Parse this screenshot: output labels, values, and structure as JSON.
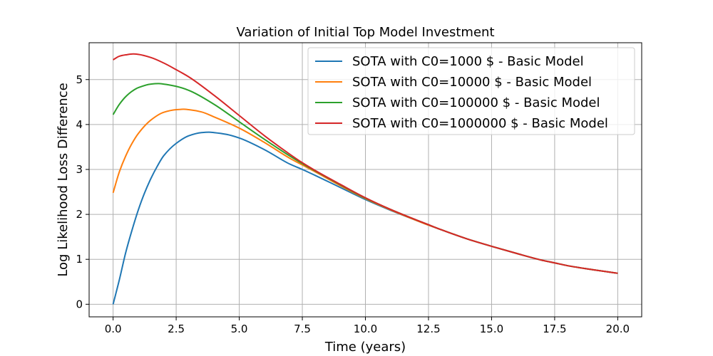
{
  "chart_data": {
    "type": "line",
    "title": "Variation of Initial Top Model Investment",
    "xlabel": "Time (years)",
    "ylabel": "Log Likelihood Loss Difference",
    "xlim": [
      -0.95,
      20.95
    ],
    "ylim": [
      -0.28,
      5.82
    ],
    "xticks": [
      0.0,
      2.5,
      5.0,
      7.5,
      10.0,
      12.5,
      15.0,
      17.5,
      20.0
    ],
    "xtick_labels": [
      "0.0",
      "2.5",
      "5.0",
      "7.5",
      "10.0",
      "12.5",
      "15.0",
      "17.5",
      "20.0"
    ],
    "yticks": [
      0,
      1,
      2,
      3,
      4,
      5
    ],
    "ytick_labels": [
      "0",
      "1",
      "2",
      "3",
      "4",
      "5"
    ],
    "grid": true,
    "legend_position": "top-right",
    "series": [
      {
        "name": "SOTA with C0=1000 $ - Basic Model",
        "color": "#1f77b4",
        "x": [
          0,
          0.25,
          0.5,
          0.75,
          1,
          1.25,
          1.5,
          1.75,
          2,
          2.5,
          3,
          3.5,
          3.8,
          4,
          4.5,
          5,
          6,
          7,
          7.5,
          8,
          9,
          10,
          11,
          12,
          12.5,
          13,
          14,
          15,
          16,
          17,
          17.5,
          18,
          19,
          20
        ],
        "y": [
          0,
          0.55,
          1.15,
          1.65,
          2.1,
          2.48,
          2.8,
          3.07,
          3.3,
          3.58,
          3.75,
          3.82,
          3.83,
          3.82,
          3.78,
          3.7,
          3.44,
          3.12,
          3.0,
          2.87,
          2.6,
          2.33,
          2.09,
          1.87,
          1.76,
          1.66,
          1.46,
          1.29,
          1.13,
          0.98,
          0.92,
          0.86,
          0.77,
          0.69
        ]
      },
      {
        "name": "SOTA with C0=10000 $ - Basic Model",
        "color": "#ff7f0e",
        "x": [
          0,
          0.25,
          0.5,
          0.75,
          1,
          1.5,
          2,
          2.5,
          2.8,
          3,
          3.5,
          4,
          5,
          6,
          7,
          7.5,
          8,
          9,
          10,
          11,
          12,
          12.5,
          13,
          14,
          15,
          16,
          17,
          17.5,
          18,
          19,
          20
        ],
        "y": [
          2.48,
          2.95,
          3.3,
          3.58,
          3.8,
          4.1,
          4.27,
          4.33,
          4.34,
          4.33,
          4.28,
          4.17,
          3.92,
          3.6,
          3.25,
          3.1,
          2.95,
          2.64,
          2.35,
          2.1,
          1.87,
          1.76,
          1.66,
          1.46,
          1.29,
          1.13,
          0.98,
          0.92,
          0.86,
          0.77,
          0.69
        ]
      },
      {
        "name": "SOTA with C0=100000 $ - Basic Model",
        "color": "#2ca02c",
        "x": [
          0,
          0.25,
          0.5,
          0.75,
          1,
          1.5,
          1.8,
          2,
          2.5,
          3,
          4,
          5,
          6,
          7,
          7.5,
          8,
          9,
          10,
          11,
          12,
          12.5,
          13,
          14,
          15,
          16,
          17,
          17.5,
          18,
          19,
          20
        ],
        "y": [
          4.22,
          4.45,
          4.62,
          4.74,
          4.82,
          4.9,
          4.91,
          4.9,
          4.85,
          4.76,
          4.45,
          4.06,
          3.67,
          3.3,
          3.13,
          2.97,
          2.66,
          2.36,
          2.11,
          1.88,
          1.77,
          1.66,
          1.46,
          1.29,
          1.13,
          0.98,
          0.92,
          0.86,
          0.77,
          0.69
        ]
      },
      {
        "name": "SOTA with C0=1000000 $ - Basic Model",
        "color": "#d62728",
        "x": [
          0,
          0.25,
          0.5,
          0.8,
          1,
          1.5,
          2,
          2.5,
          3,
          4,
          5,
          6,
          7,
          7.5,
          8,
          9,
          10,
          11,
          12,
          12.5,
          13,
          14,
          15,
          16,
          17,
          17.5,
          18,
          19,
          20
        ],
        "y": [
          5.44,
          5.52,
          5.55,
          5.57,
          5.56,
          5.49,
          5.37,
          5.22,
          5.06,
          4.65,
          4.2,
          3.75,
          3.34,
          3.15,
          2.98,
          2.67,
          2.37,
          2.11,
          1.88,
          1.77,
          1.66,
          1.46,
          1.29,
          1.13,
          0.98,
          0.92,
          0.86,
          0.77,
          0.69
        ]
      }
    ]
  }
}
